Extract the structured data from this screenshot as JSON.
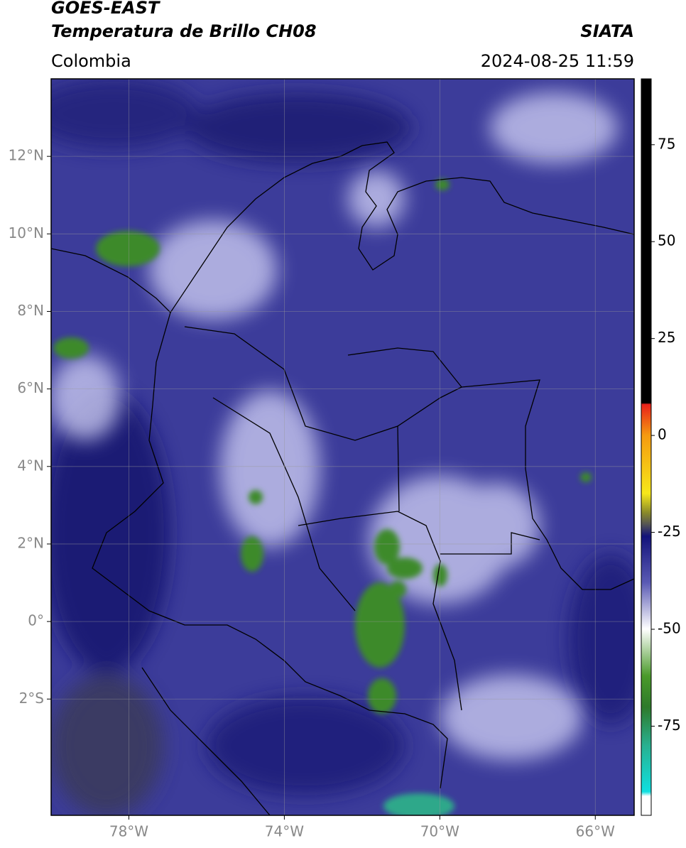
{
  "header": {
    "title": "GOES-EAST",
    "subtitle": "Temperatura de Brillo CH08",
    "source": "SIATA",
    "region": "Colombia",
    "timestamp": "2024-08-25 11:59"
  },
  "map": {
    "xlim": [
      -80,
      -65
    ],
    "ylim": [
      -5,
      14
    ],
    "xticks": [
      {
        "value": -78,
        "label": "78°W"
      },
      {
        "value": -74,
        "label": "74°W"
      },
      {
        "value": -70,
        "label": "70°W"
      },
      {
        "value": -66,
        "label": "66°W"
      }
    ],
    "yticks": [
      {
        "value": 12,
        "label": "12°N"
      },
      {
        "value": 10,
        "label": "10°N"
      },
      {
        "value": 8,
        "label": "8°N"
      },
      {
        "value": 6,
        "label": "6°N"
      },
      {
        "value": 4,
        "label": "4°N"
      },
      {
        "value": 2,
        "label": "2°N"
      },
      {
        "value": 0,
        "label": "0°"
      },
      {
        "value": -2,
        "label": "2°S"
      }
    ]
  },
  "colorbar": {
    "lim": [
      -98,
      92
    ],
    "ticks": [
      75,
      50,
      25,
      0,
      -25,
      -50,
      -75
    ]
  }
}
